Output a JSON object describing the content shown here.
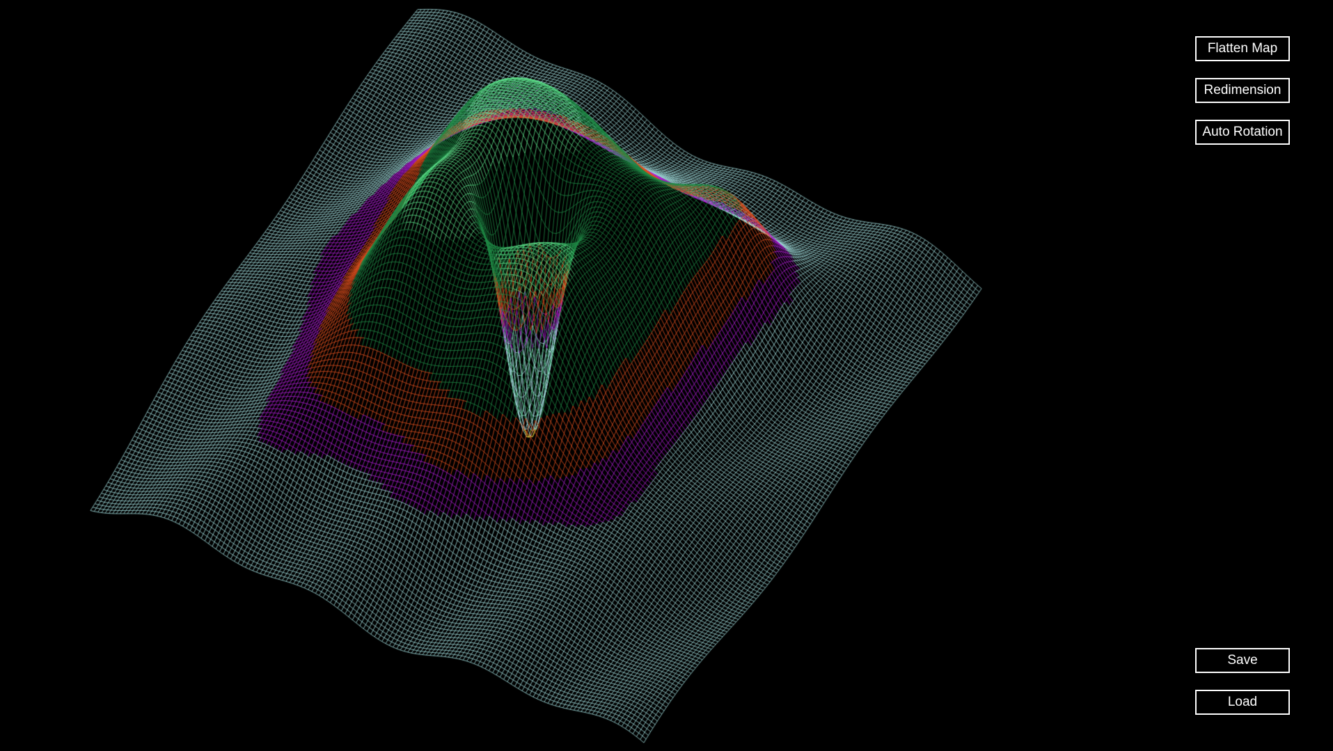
{
  "toolbar": {
    "flatten_map_label": "Flatten Map",
    "redimension_label": "Redimension",
    "auto_rotation_label": "Auto Rotation"
  },
  "file_controls": {
    "save_label": "Save",
    "load_label": "Load"
  },
  "terrain_view": {
    "background_color": "#000000",
    "height_band_colors": {
      "low": "#a6e3e3",
      "low_mid": "#b21fd9",
      "mid": "#e0501f",
      "high": "#1f8a45",
      "peak_highlight": "#5de08a",
      "pit_core": "#e8d23a"
    },
    "render_style": "wireframe-mesh"
  }
}
